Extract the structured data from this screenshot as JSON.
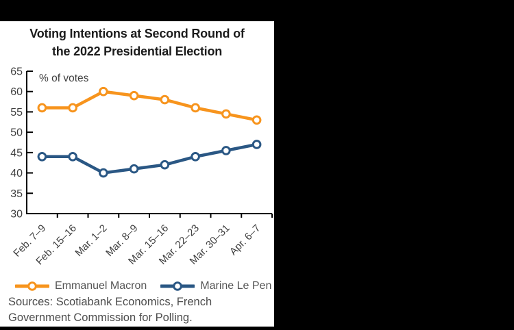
{
  "chart_data": {
    "type": "line",
    "title_line1": "Voting Intentions at Second Round of",
    "title_line2": "the 2022 Presidential Election",
    "y_annotation": "% of votes",
    "categories": [
      "Feb. 7–9",
      "Feb. 15–16",
      "Mar. 1–2",
      "Mar. 8–9",
      "Mar. 15–16",
      "Mar. 22–23",
      "Mar. 30–31",
      "Apr. 6–7"
    ],
    "series": [
      {
        "name": "Emmanuel Macron",
        "color": "#F7941D",
        "values": [
          56,
          56,
          60,
          59,
          58,
          56,
          54.5,
          53
        ]
      },
      {
        "name": "Marine Le Pen",
        "color": "#2A5784",
        "values": [
          44,
          44,
          40,
          41,
          42,
          44,
          45.5,
          47
        ]
      }
    ],
    "ylim": [
      30,
      65
    ],
    "ytick_step": 5,
    "grid": false,
    "legend_position": "bottom",
    "axis_color": "#000000",
    "label_color": "#3f3f3f"
  },
  "legend": {
    "items": [
      {
        "label": "Emmanuel Macron",
        "color": "#F7941D"
      },
      {
        "label": "Marine Le Pen",
        "color": "#2A5784"
      }
    ]
  },
  "sources": {
    "line1": "Sources: Scotiabank Economics, French",
    "line2": "Government Commission for Polling."
  }
}
